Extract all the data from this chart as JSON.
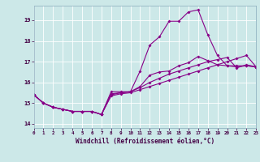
{
  "xlabel": "Windchill (Refroidissement éolien,°C)",
  "bg_color": "#cce8e8",
  "line_color": "#880088",
  "xlim": [
    0,
    23
  ],
  "ylim": [
    13.8,
    19.7
  ],
  "yticks": [
    14,
    15,
    16,
    17,
    18,
    19
  ],
  "xticks": [
    0,
    1,
    2,
    3,
    4,
    5,
    6,
    7,
    8,
    9,
    10,
    11,
    12,
    13,
    14,
    15,
    16,
    17,
    18,
    19,
    20,
    21,
    22,
    23
  ],
  "series": [
    {
      "x": [
        0,
        1,
        2,
        3,
        4,
        5,
        6,
        7,
        8,
        9,
        10,
        11,
        12,
        13,
        14,
        15,
        16,
        17,
        18,
        19,
        20,
        21,
        22,
        23
      ],
      "y": [
        15.4,
        15.0,
        14.8,
        14.7,
        14.6,
        14.6,
        14.6,
        14.45,
        15.55,
        15.55,
        15.55,
        16.55,
        17.8,
        18.2,
        18.95,
        18.95,
        19.4,
        19.5,
        18.3,
        17.3,
        16.8,
        16.8,
        16.8,
        16.75
      ]
    },
    {
      "x": [
        0,
        1,
        2,
        3,
        4,
        5,
        6,
        7,
        8,
        9,
        10,
        11,
        12,
        13,
        14,
        15,
        16,
        17,
        18,
        19,
        20,
        21,
        22,
        23
      ],
      "y": [
        15.4,
        15.0,
        14.8,
        14.7,
        14.6,
        14.6,
        14.6,
        14.45,
        15.45,
        15.5,
        15.55,
        15.8,
        16.35,
        16.5,
        16.55,
        16.8,
        16.95,
        17.25,
        17.05,
        16.85,
        16.8,
        16.75,
        16.8,
        16.75
      ]
    },
    {
      "x": [
        0,
        1,
        2,
        3,
        4,
        5,
        6,
        7,
        8,
        9,
        10,
        11,
        12,
        13,
        14,
        15,
        16,
        17,
        18,
        19,
        20,
        21,
        22,
        23
      ],
      "y": [
        15.4,
        15.0,
        14.8,
        14.7,
        14.6,
        14.6,
        14.6,
        14.45,
        15.4,
        15.5,
        15.55,
        15.75,
        16.0,
        16.2,
        16.4,
        16.55,
        16.7,
        16.85,
        17.0,
        17.1,
        17.2,
        16.7,
        16.85,
        16.75
      ]
    },
    {
      "x": [
        0,
        1,
        2,
        3,
        4,
        5,
        6,
        7,
        8,
        9,
        10,
        11,
        12,
        13,
        14,
        15,
        16,
        17,
        18,
        19,
        20,
        21,
        22,
        23
      ],
      "y": [
        15.4,
        15.0,
        14.8,
        14.7,
        14.6,
        14.6,
        14.6,
        14.45,
        15.35,
        15.45,
        15.5,
        15.65,
        15.8,
        15.95,
        16.1,
        16.25,
        16.4,
        16.55,
        16.7,
        16.85,
        17.0,
        17.15,
        17.3,
        16.75
      ]
    }
  ]
}
